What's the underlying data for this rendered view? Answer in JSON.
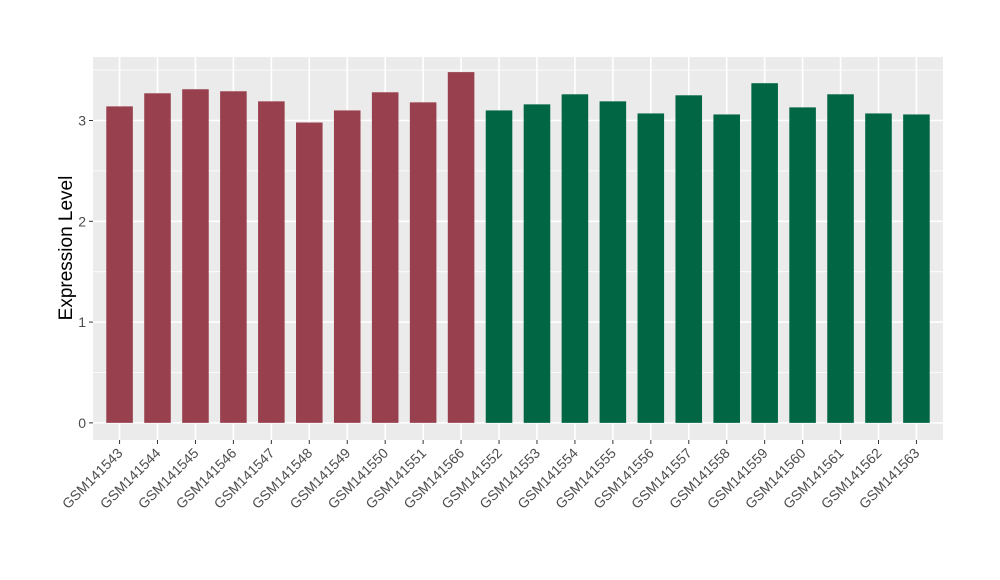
{
  "chart_data": {
    "type": "bar",
    "title": "",
    "xlabel": "",
    "ylabel": "Expression Level",
    "ylim": [
      -0.17,
      3.63
    ],
    "yticks": [
      0,
      1,
      2,
      3
    ],
    "grid": true,
    "panel_background": "#ebebeb",
    "categories": [
      "GSM141543",
      "GSM141544",
      "GSM141545",
      "GSM141546",
      "GSM141547",
      "GSM141548",
      "GSM141549",
      "GSM141550",
      "GSM141551",
      "GSM141566",
      "GSM141552",
      "GSM141553",
      "GSM141554",
      "GSM141555",
      "GSM141556",
      "GSM141557",
      "GSM141558",
      "GSM141559",
      "GSM141560",
      "GSM141561",
      "GSM141562",
      "GSM141563"
    ],
    "values": [
      3.14,
      3.27,
      3.31,
      3.29,
      3.19,
      2.98,
      3.1,
      3.28,
      3.18,
      3.48,
      3.1,
      3.16,
      3.26,
      3.19,
      3.07,
      3.25,
      3.06,
      3.37,
      3.13,
      3.26,
      3.07,
      3.06
    ],
    "group_colors": [
      "#99404f",
      "#006644"
    ],
    "bar_groups": [
      0,
      0,
      0,
      0,
      0,
      0,
      0,
      0,
      0,
      0,
      1,
      1,
      1,
      1,
      1,
      1,
      1,
      1,
      1,
      1,
      1,
      1
    ]
  }
}
